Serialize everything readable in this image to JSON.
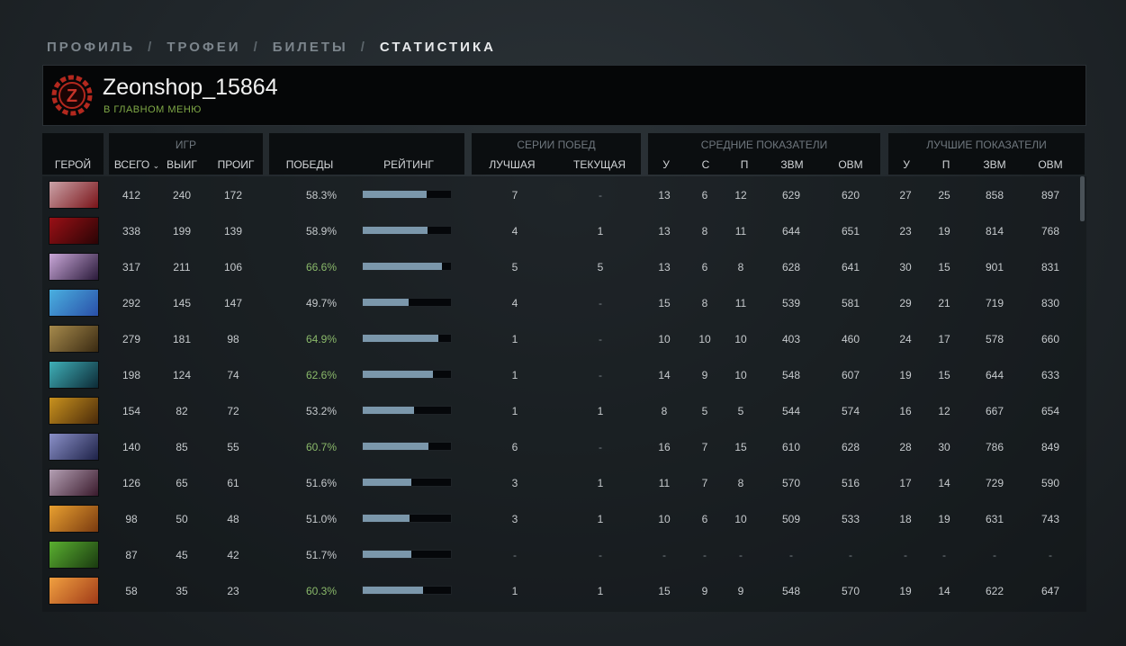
{
  "nav": {
    "items": [
      {
        "label": "ПРОФИЛЬ",
        "active": false
      },
      {
        "label": "ТРОФЕИ",
        "active": false
      },
      {
        "label": "БИЛЕТЫ",
        "active": false
      },
      {
        "label": "СТАТИСТИКА",
        "active": true
      }
    ],
    "separator": "/"
  },
  "profile": {
    "name": "Zeonshop_15864",
    "status": "В ГЛАВНОМ МЕНЮ",
    "logo_letter": "Z",
    "logo_color": "#b3281e"
  },
  "headers": {
    "hero": "ГЕРОЙ",
    "games_group": "ИГР",
    "total": "ВСЕГО",
    "wins": "ВЫИГ",
    "losses": "ПРОИГ",
    "winrate": "ПОБЕДЫ",
    "rating": "РЕЙТИНГ",
    "streak_group": "СЕРИИ ПОБЕД",
    "best_streak": "ЛУЧШАЯ",
    "current_streak": "ТЕКУЩАЯ",
    "avg_group": "СРЕДНИЕ ПОКАЗАТЕЛИ",
    "best_group": "ЛУЧШИЕ ПОКАЗАТЕЛИ",
    "kills": "У",
    "deaths": "С",
    "assists": "П",
    "xpm": "ЗВМ",
    "gpm": "ОВМ"
  },
  "colors": {
    "win_highlight": "#8ab96a",
    "rating_bar": "#7b97ab"
  },
  "rows": [
    {
      "portrait": "hero-invoker-icon",
      "colors": [
        "#caa3a8",
        "#7a1318"
      ],
      "total": "412",
      "wins": "240",
      "losses": "172",
      "winrate": "58.3%",
      "high": false,
      "rating": 0.72,
      "best_streak": "7",
      "cur_streak": "-",
      "avg": [
        "13",
        "6",
        "12",
        "629",
        "620"
      ],
      "best": [
        "27",
        "25",
        "858",
        "897"
      ]
    },
    {
      "portrait": "hero-shadow-fiend-icon",
      "colors": [
        "#9a1016",
        "#2a0405"
      ],
      "total": "338",
      "wins": "199",
      "losses": "139",
      "winrate": "58.9%",
      "high": false,
      "rating": 0.73,
      "best_streak": "4",
      "cur_streak": "1",
      "avg": [
        "13",
        "8",
        "11",
        "644",
        "651"
      ],
      "best": [
        "23",
        "19",
        "814",
        "768"
      ]
    },
    {
      "portrait": "hero-anti-mage-icon",
      "colors": [
        "#c9a7d8",
        "#2a1a3a"
      ],
      "total": "317",
      "wins": "211",
      "losses": "106",
      "winrate": "66.6%",
      "high": true,
      "rating": 0.9,
      "best_streak": "5",
      "cur_streak": "5",
      "avg": [
        "13",
        "6",
        "8",
        "628",
        "641"
      ],
      "best": [
        "30",
        "15",
        "901",
        "831"
      ]
    },
    {
      "portrait": "hero-puck-icon",
      "colors": [
        "#4ab0e0",
        "#2a4fa8"
      ],
      "total": "292",
      "wins": "145",
      "losses": "147",
      "winrate": "49.7%",
      "high": false,
      "rating": 0.52,
      "best_streak": "4",
      "cur_streak": "-",
      "avg": [
        "15",
        "8",
        "11",
        "539",
        "581"
      ],
      "best": [
        "29",
        "21",
        "719",
        "830"
      ]
    },
    {
      "portrait": "hero-alchemist-icon",
      "colors": [
        "#a68a4c",
        "#3a2a12"
      ],
      "total": "279",
      "wins": "181",
      "losses": "98",
      "winrate": "64.9%",
      "high": true,
      "rating": 0.86,
      "best_streak": "1",
      "cur_streak": "-",
      "avg": [
        "10",
        "10",
        "10",
        "403",
        "460"
      ],
      "best": [
        "24",
        "17",
        "578",
        "660"
      ]
    },
    {
      "portrait": "hero-morphling-icon",
      "colors": [
        "#3fb0b8",
        "#0d2a36"
      ],
      "total": "198",
      "wins": "124",
      "losses": "74",
      "winrate": "62.6%",
      "high": true,
      "rating": 0.8,
      "best_streak": "1",
      "cur_streak": "-",
      "avg": [
        "14",
        "9",
        "10",
        "548",
        "607"
      ],
      "best": [
        "19",
        "15",
        "644",
        "633"
      ]
    },
    {
      "portrait": "hero-juggernaut-icon",
      "colors": [
        "#c9921e",
        "#4a2a0a"
      ],
      "total": "154",
      "wins": "82",
      "losses": "72",
      "winrate": "53.2%",
      "high": false,
      "rating": 0.58,
      "best_streak": "1",
      "cur_streak": "1",
      "avg": [
        "8",
        "5",
        "5",
        "544",
        "574"
      ],
      "best": [
        "16",
        "12",
        "667",
        "654"
      ]
    },
    {
      "portrait": "hero-void-spirit-icon",
      "colors": [
        "#8a90c8",
        "#1e2248"
      ],
      "total": "140",
      "wins": "85",
      "losses": "55",
      "winrate": "60.7%",
      "high": true,
      "rating": 0.74,
      "best_streak": "6",
      "cur_streak": "-",
      "avg": [
        "16",
        "7",
        "15",
        "610",
        "628"
      ],
      "best": [
        "28",
        "30",
        "786",
        "849"
      ]
    },
    {
      "portrait": "hero-queen-of-pain-icon",
      "colors": [
        "#b4a0b4",
        "#3a1a2c"
      ],
      "total": "126",
      "wins": "65",
      "losses": "61",
      "winrate": "51.6%",
      "high": false,
      "rating": 0.55,
      "best_streak": "3",
      "cur_streak": "1",
      "avg": [
        "11",
        "7",
        "8",
        "570",
        "516"
      ],
      "best": [
        "17",
        "14",
        "729",
        "590"
      ]
    },
    {
      "portrait": "hero-lina-icon",
      "colors": [
        "#e8a030",
        "#7a3a10"
      ],
      "total": "98",
      "wins": "50",
      "losses": "48",
      "winrate": "51.0%",
      "high": false,
      "rating": 0.53,
      "best_streak": "3",
      "cur_streak": "1",
      "avg": [
        "10",
        "6",
        "10",
        "509",
        "533"
      ],
      "best": [
        "18",
        "19",
        "631",
        "743"
      ]
    },
    {
      "portrait": "hero-rubick-icon",
      "colors": [
        "#5ab030",
        "#1a3a10"
      ],
      "total": "87",
      "wins": "45",
      "losses": "42",
      "winrate": "51.7%",
      "high": false,
      "rating": 0.55,
      "best_streak": "-",
      "cur_streak": "-",
      "avg": [
        "-",
        "-",
        "-",
        "-",
        "-"
      ],
      "best": [
        "-",
        "-",
        "-",
        "-"
      ]
    },
    {
      "portrait": "hero-lina-alt-icon",
      "colors": [
        "#f0a040",
        "#a03a18"
      ],
      "total": "58",
      "wins": "35",
      "losses": "23",
      "winrate": "60.3%",
      "high": true,
      "rating": 0.68,
      "best_streak": "1",
      "cur_streak": "1",
      "avg": [
        "15",
        "9",
        "9",
        "548",
        "570"
      ],
      "best": [
        "19",
        "14",
        "622",
        "647"
      ]
    }
  ]
}
